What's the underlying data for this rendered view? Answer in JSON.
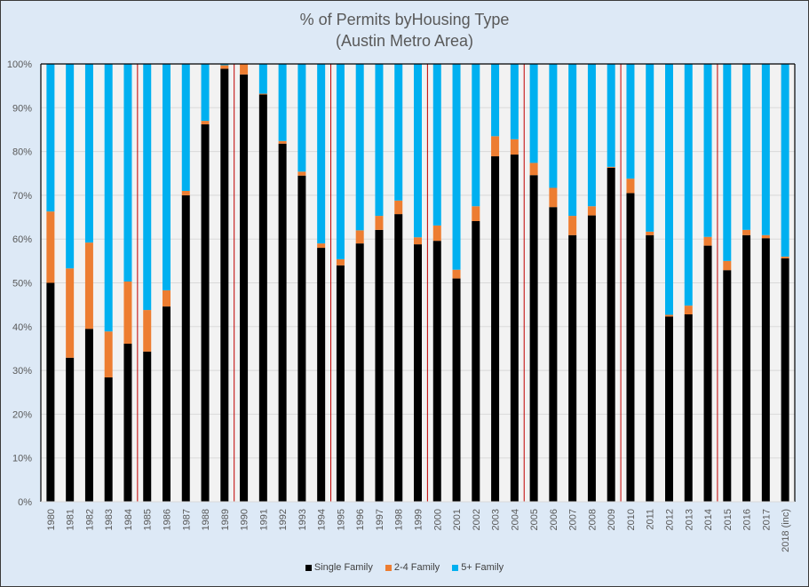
{
  "chart_data": {
    "type": "bar",
    "stacked": "percent",
    "title": "% of Permits byHousing Type",
    "subtitle": "(Austin Metro Area)",
    "xlabel": "",
    "ylabel": "",
    "ylim": [
      0,
      100
    ],
    "yticks": [
      "0%",
      "10%",
      "20%",
      "30%",
      "40%",
      "50%",
      "60%",
      "70%",
      "80%",
      "90%",
      "100%"
    ],
    "grid": true,
    "legend_position": "bottom",
    "separator_lines_after": [
      "1984",
      "1989",
      "1994",
      "1999",
      "2004",
      "2009",
      "2014"
    ],
    "categories": [
      "1980",
      "1981",
      "1982",
      "1983",
      "1984",
      "1985",
      "1986",
      "1987",
      "1988",
      "1989",
      "1990",
      "1991",
      "1992",
      "1993",
      "1994",
      "1995",
      "1996",
      "1997",
      "1998",
      "1999",
      "2000",
      "2001",
      "2002",
      "2003",
      "2004",
      "2005",
      "2006",
      "2007",
      "2008",
      "2009",
      "2010",
      "2011",
      "2012",
      "2013",
      "2014",
      "2015",
      "2016",
      "2017",
      "2018 (inc)"
    ],
    "series": [
      {
        "name": "Single Family",
        "color": "#000000",
        "values": [
          50.0,
          32.9,
          39.5,
          28.4,
          36.1,
          34.3,
          44.6,
          70.0,
          86.2,
          98.9,
          97.6,
          93.0,
          81.8,
          74.5,
          58.0,
          54.0,
          59.0,
          62.1,
          65.7,
          58.8,
          59.6,
          51.0,
          64.1,
          78.9,
          79.3,
          74.6,
          67.3,
          60.9,
          65.4,
          76.3,
          70.5,
          60.9,
          42.3,
          42.8,
          58.5,
          52.9,
          60.9,
          60.2,
          55.6
        ]
      },
      {
        "name": "2-4 Family",
        "color": "#ed7d31",
        "values": [
          16.3,
          20.4,
          19.7,
          10.5,
          14.2,
          9.5,
          3.7,
          1.0,
          0.8,
          0.8,
          2.4,
          0.2,
          0.6,
          0.9,
          1.0,
          1.4,
          3.0,
          3.2,
          3.1,
          1.6,
          3.5,
          2.0,
          3.4,
          4.6,
          3.5,
          2.8,
          4.4,
          4.4,
          2.1,
          0.2,
          3.3,
          0.8,
          0.4,
          2.0,
          2.0,
          2.1,
          1.2,
          0.7,
          0.4
        ]
      },
      {
        "name": "5+ Family",
        "color": "#00b0f0",
        "values": [
          33.7,
          46.7,
          40.8,
          61.1,
          49.7,
          56.2,
          51.7,
          29.0,
          13.0,
          0.3,
          0.0,
          6.8,
          17.6,
          24.6,
          41.0,
          44.6,
          38.0,
          34.7,
          31.2,
          39.6,
          36.9,
          47.0,
          32.5,
          16.5,
          17.2,
          22.6,
          28.3,
          34.7,
          32.5,
          23.5,
          26.2,
          38.3,
          57.3,
          55.2,
          39.5,
          45.0,
          37.9,
          39.1,
          44.0
        ]
      }
    ]
  },
  "colors": {
    "background": "#dde9f6",
    "plot_background": "#f2f2f2",
    "gridline": "#d9d9d9",
    "separator": "#c00000"
  }
}
